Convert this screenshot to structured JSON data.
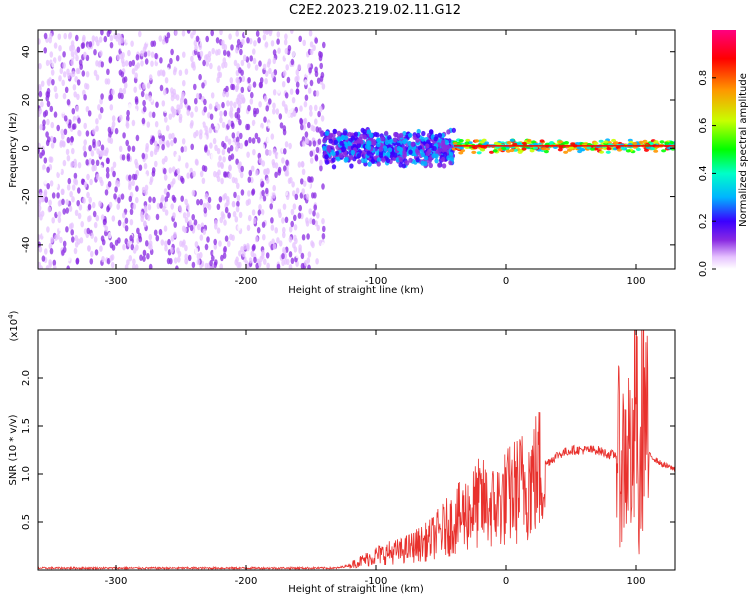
{
  "title": "C2E2.2023.219.02.11.G12",
  "chart_data": [
    {
      "type": "heatmap",
      "xlabel": "Height of straight line (km)",
      "ylabel": "Frequency (Hz)",
      "xlim": [
        -360,
        130
      ],
      "ylim": [
        -50,
        49
      ],
      "xticks": [
        -300,
        -200,
        -100,
        0,
        100
      ],
      "yticks": [
        -40,
        -20,
        0,
        20,
        40
      ],
      "grid": false,
      "colorbar": {
        "label": "Normalized spectral amplitude",
        "range": [
          0.0,
          1.0
        ],
        "ticks": [
          "0.0",
          "0.2",
          "0.4",
          "0.6",
          "0.8"
        ],
        "colors": [
          "#ffffff",
          "#e6c2ff",
          "#8a2be2",
          "#3a00ff",
          "#00b4ff",
          "#00ffc8",
          "#00ff00",
          "#c8ff00",
          "#ff9600",
          "#ff0000",
          "#ff0080"
        ]
      },
      "regions": [
        {
          "x_range": [
            -360,
            -140
          ],
          "freq_range": [
            -50,
            49
          ],
          "amplitude": "low (noise)"
        },
        {
          "x_range": [
            -140,
            -40
          ],
          "freq_center": 0,
          "freq_halfwidth": 8,
          "amplitude": "medium"
        },
        {
          "x_range": [
            -40,
            130
          ],
          "freq_center": 1,
          "freq_halfwidth": 3,
          "amplitude": "high"
        }
      ]
    },
    {
      "type": "line",
      "xlabel": "Height of straight line (km)",
      "ylabel": "SNR (10 * v/v)",
      "y_multiplier": "(x10",
      "y_multiplier_exp": "4",
      "y_multiplier_close": ")",
      "xlim": [
        -360,
        130
      ],
      "ylim": [
        0,
        2.5
      ],
      "xticks": [
        -300,
        -200,
        -100,
        0,
        100
      ],
      "yticks": [
        "0.5",
        "1.0",
        "1.5",
        "2.0"
      ],
      "grid": false,
      "series": [
        {
          "color": "#e8312d",
          "x": [
            -360,
            -300,
            -200,
            -130,
            -120,
            -110,
            -100,
            -90,
            -80,
            -70,
            -60,
            -50,
            -40,
            -30,
            -20,
            -10,
            0,
            10,
            20,
            30,
            40,
            50,
            60,
            70,
            80,
            85,
            90,
            95,
            98,
            100,
            102,
            105,
            110,
            120,
            130
          ],
          "y": [
            0.02,
            0.02,
            0.02,
            0.02,
            0.05,
            0.1,
            0.15,
            0.18,
            0.2,
            0.25,
            0.3,
            0.4,
            0.5,
            0.6,
            0.7,
            0.65,
            0.75,
            0.85,
            0.95,
            1.1,
            1.2,
            1.25,
            1.25,
            1.25,
            1.2,
            1.2,
            1.15,
            1.3,
            0.9,
            2.4,
            0.3,
            1.9,
            1.2,
            1.1,
            1.05
          ]
        }
      ]
    }
  ]
}
